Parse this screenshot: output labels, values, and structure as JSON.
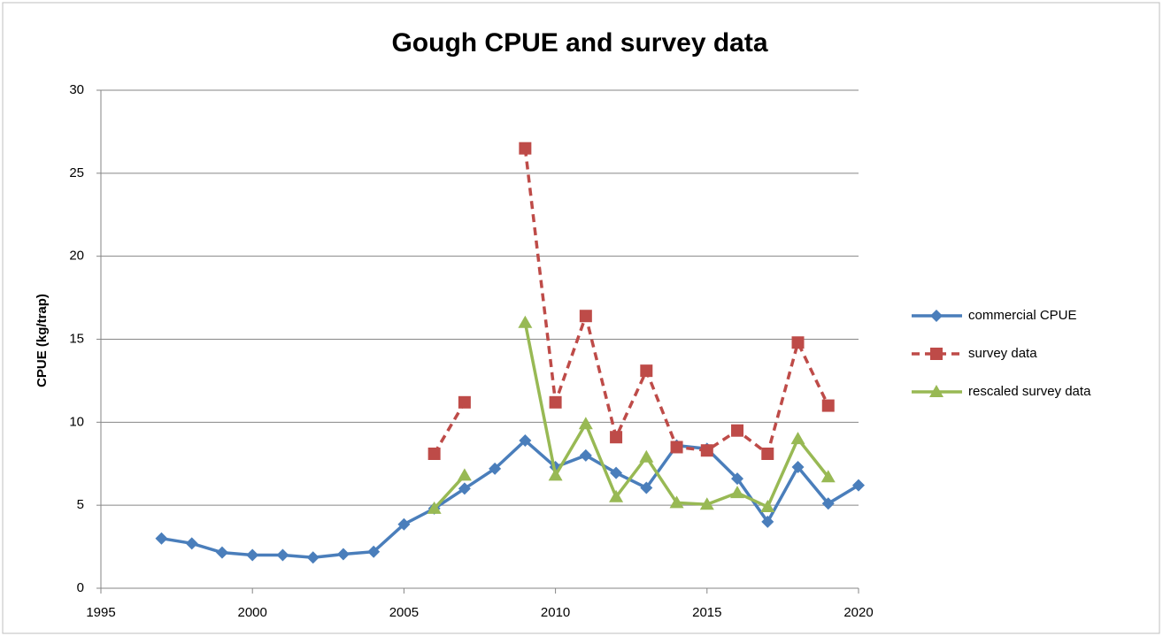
{
  "chart_data": {
    "type": "line",
    "title": "Gough CPUE and survey data",
    "y_label": "CPUE (kg/trap)",
    "x": [
      1997,
      1998,
      1999,
      2000,
      2001,
      2002,
      2003,
      2004,
      2005,
      2006,
      2007,
      2008,
      2009,
      2010,
      2011,
      2012,
      2013,
      2014,
      2015,
      2016,
      2017,
      2018,
      2019,
      2020
    ],
    "series": [
      {
        "name": "commercial CPUE",
        "color": "#4a7ebb",
        "marker": "diamond",
        "dash": false,
        "values": [
          3.0,
          2.7,
          2.15,
          2.0,
          2.0,
          1.85,
          2.05,
          2.2,
          3.85,
          4.8,
          6.0,
          7.2,
          8.9,
          7.3,
          8.0,
          6.95,
          6.05,
          8.6,
          8.4,
          6.6,
          4.0,
          7.3,
          5.1,
          6.2
        ]
      },
      {
        "name": "survey data",
        "color": "#be4b48",
        "marker": "square",
        "dash": true,
        "values": [
          null,
          null,
          null,
          null,
          null,
          null,
          null,
          null,
          null,
          8.1,
          11.2,
          null,
          26.5,
          11.2,
          16.4,
          9.1,
          13.1,
          8.5,
          8.3,
          9.5,
          8.1,
          14.8,
          11.0,
          null
        ]
      },
      {
        "name": "rescaled survey data",
        "color": "#98b954",
        "marker": "triangle",
        "dash": false,
        "values": [
          null,
          null,
          null,
          null,
          null,
          null,
          null,
          null,
          null,
          4.8,
          6.8,
          null,
          16.0,
          6.8,
          9.9,
          5.5,
          7.9,
          5.15,
          5.05,
          5.75,
          4.9,
          9.0,
          6.7,
          null
        ]
      }
    ],
    "xlim": [
      1995,
      2020
    ],
    "xticks": [
      1995,
      2000,
      2005,
      2010,
      2015,
      2020
    ],
    "ylim": [
      0,
      30
    ],
    "yticks": [
      0,
      5,
      10,
      15,
      20,
      25,
      30
    ],
    "grid": true,
    "legend": "right"
  }
}
